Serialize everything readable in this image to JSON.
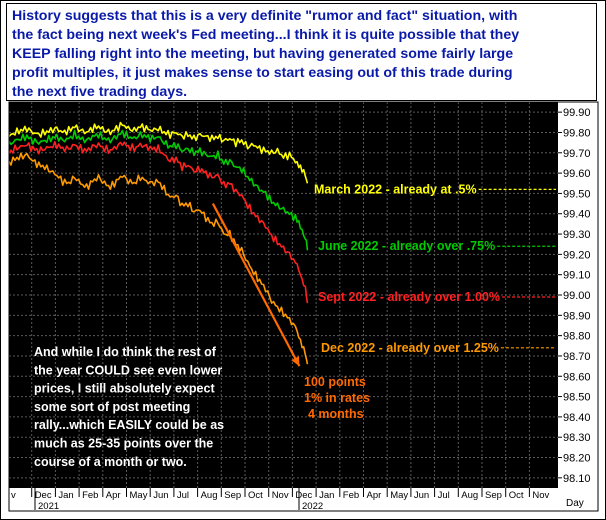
{
  "header": {
    "text": "History suggests that this is a very definite \"rumor and fact\" situation, with\nthe fact being next week's Fed meeting...I think it is quite possible that they\nKEEP falling right into the meeting, but having generated some fairly large\nprofit multiples, it just makes sense to start easing out of this trade during\nthe next five trading days."
  },
  "colors": {
    "background": "#000000",
    "grid": "#5a5a5a",
    "header_text": "#0a1aa8",
    "arrow": "#ff6a00",
    "note_text": "#ffffff"
  },
  "chart_data": {
    "type": "line",
    "x_axis": {
      "month_labels": [
        "v",
        "Dec",
        "Jan",
        "Feb",
        "Apr",
        "May",
        "Jun",
        "Jul",
        "Aug",
        "Sep",
        "Oct",
        "Nov",
        "Dec",
        "Jan",
        "Feb",
        "Apr",
        "May",
        "Jun",
        "Jul",
        "Aug",
        "Sep",
        "Oct",
        "Nov"
      ],
      "year_labels": [
        "2021",
        "2022"
      ],
      "unit_label": "Day"
    },
    "y_axis": {
      "ticks": [
        "99.90",
        "99.80",
        "99.70",
        "99.60",
        "99.50",
        "99.40",
        "99.30",
        "99.20",
        "99.10",
        "99.00",
        "98.90",
        "98.80",
        "98.70",
        "98.60",
        "98.50",
        "98.40",
        "98.30",
        "98.20",
        "98.10"
      ],
      "ylim": [
        98.05,
        99.95
      ]
    },
    "grid": true,
    "series": [
      {
        "name": "March 2022",
        "color": "#ffff00",
        "points": [
          [
            0,
            99.78
          ],
          [
            6,
            99.8
          ],
          [
            12,
            99.81
          ],
          [
            18,
            99.82
          ],
          [
            24,
            99.8
          ],
          [
            30,
            99.79
          ],
          [
            36,
            99.8
          ],
          [
            42,
            99.81
          ],
          [
            48,
            99.82
          ],
          [
            54,
            99.8
          ],
          [
            60,
            99.81
          ],
          [
            66,
            99.83
          ],
          [
            72,
            99.81
          ],
          [
            78,
            99.8
          ],
          [
            84,
            99.82
          ],
          [
            90,
            99.83
          ],
          [
            96,
            99.81
          ],
          [
            102,
            99.8
          ],
          [
            108,
            99.82
          ],
          [
            114,
            99.84
          ],
          [
            120,
            99.82
          ],
          [
            126,
            99.81
          ],
          [
            132,
            99.83
          ],
          [
            138,
            99.82
          ],
          [
            144,
            99.81
          ],
          [
            150,
            99.82
          ],
          [
            156,
            99.8
          ],
          [
            162,
            99.79
          ],
          [
            168,
            99.8
          ],
          [
            174,
            99.78
          ],
          [
            180,
            99.79
          ],
          [
            186,
            99.77
          ],
          [
            192,
            99.79
          ],
          [
            198,
            99.78
          ],
          [
            204,
            99.77
          ],
          [
            210,
            99.78
          ],
          [
            216,
            99.76
          ],
          [
            222,
            99.77
          ],
          [
            228,
            99.75
          ],
          [
            234,
            99.76
          ],
          [
            240,
            99.73
          ],
          [
            246,
            99.74
          ],
          [
            252,
            99.72
          ],
          [
            258,
            99.71
          ],
          [
            264,
            99.7
          ],
          [
            270,
            99.71
          ],
          [
            276,
            99.68
          ],
          [
            282,
            99.69
          ],
          [
            288,
            99.66
          ],
          [
            293,
            99.62
          ],
          [
            298,
            99.59
          ],
          [
            300,
            99.55
          ]
        ]
      },
      {
        "name": "June 2022",
        "color": "#00cc00",
        "points": [
          [
            0,
            99.74
          ],
          [
            6,
            99.76
          ],
          [
            12,
            99.77
          ],
          [
            18,
            99.78
          ],
          [
            24,
            99.76
          ],
          [
            30,
            99.75
          ],
          [
            36,
            99.76
          ],
          [
            42,
            99.77
          ],
          [
            48,
            99.78
          ],
          [
            54,
            99.76
          ],
          [
            60,
            99.77
          ],
          [
            66,
            99.79
          ],
          [
            72,
            99.77
          ],
          [
            78,
            99.76
          ],
          [
            84,
            99.78
          ],
          [
            90,
            99.79
          ],
          [
            96,
            99.77
          ],
          [
            102,
            99.76
          ],
          [
            108,
            99.78
          ],
          [
            114,
            99.8
          ],
          [
            120,
            99.78
          ],
          [
            126,
            99.77
          ],
          [
            132,
            99.79
          ],
          [
            138,
            99.78
          ],
          [
            144,
            99.77
          ],
          [
            150,
            99.78
          ],
          [
            156,
            99.75
          ],
          [
            162,
            99.73
          ],
          [
            168,
            99.74
          ],
          [
            174,
            99.71
          ],
          [
            180,
            99.72
          ],
          [
            186,
            99.7
          ],
          [
            192,
            99.71
          ],
          [
            198,
            99.69
          ],
          [
            204,
            99.68
          ],
          [
            210,
            99.69
          ],
          [
            216,
            99.65
          ],
          [
            222,
            99.66
          ],
          [
            228,
            99.63
          ],
          [
            234,
            99.62
          ],
          [
            240,
            99.58
          ],
          [
            246,
            99.55
          ],
          [
            252,
            99.52
          ],
          [
            258,
            99.5
          ],
          [
            264,
            99.46
          ],
          [
            270,
            99.44
          ],
          [
            276,
            99.42
          ],
          [
            282,
            99.4
          ],
          [
            288,
            99.38
          ],
          [
            293,
            99.33
          ],
          [
            298,
            99.28
          ],
          [
            300,
            99.22
          ]
        ]
      },
      {
        "name": "Sept 2022",
        "color": "#ff2020",
        "points": [
          [
            0,
            99.7
          ],
          [
            6,
            99.72
          ],
          [
            12,
            99.73
          ],
          [
            18,
            99.74
          ],
          [
            24,
            99.72
          ],
          [
            30,
            99.71
          ],
          [
            36,
            99.72
          ],
          [
            42,
            99.73
          ],
          [
            48,
            99.74
          ],
          [
            54,
            99.72
          ],
          [
            60,
            99.72
          ],
          [
            66,
            99.74
          ],
          [
            72,
            99.72
          ],
          [
            78,
            99.71
          ],
          [
            84,
            99.73
          ],
          [
            90,
            99.74
          ],
          [
            96,
            99.72
          ],
          [
            102,
            99.71
          ],
          [
            108,
            99.73
          ],
          [
            114,
            99.75
          ],
          [
            120,
            99.73
          ],
          [
            126,
            99.72
          ],
          [
            132,
            99.74
          ],
          [
            138,
            99.73
          ],
          [
            144,
            99.72
          ],
          [
            150,
            99.72
          ],
          [
            156,
            99.69
          ],
          [
            162,
            99.66
          ],
          [
            168,
            99.67
          ],
          [
            174,
            99.63
          ],
          [
            180,
            99.64
          ],
          [
            186,
            99.61
          ],
          [
            192,
            99.62
          ],
          [
            198,
            99.6
          ],
          [
            204,
            99.58
          ],
          [
            210,
            99.59
          ],
          [
            216,
            99.54
          ],
          [
            222,
            99.55
          ],
          [
            228,
            99.51
          ],
          [
            234,
            99.49
          ],
          [
            240,
            99.44
          ],
          [
            246,
            99.4
          ],
          [
            252,
            99.37
          ],
          [
            258,
            99.34
          ],
          [
            264,
            99.29
          ],
          [
            270,
            99.26
          ],
          [
            276,
            99.23
          ],
          [
            282,
            99.2
          ],
          [
            288,
            99.16
          ],
          [
            293,
            99.1
          ],
          [
            298,
            99.04
          ],
          [
            300,
            98.96
          ]
        ]
      },
      {
        "name": "Dec 2022",
        "color": "#ff9900",
        "points": [
          [
            0,
            99.65
          ],
          [
            6,
            99.67
          ],
          [
            12,
            99.68
          ],
          [
            18,
            99.69
          ],
          [
            24,
            99.66
          ],
          [
            30,
            99.64
          ],
          [
            36,
            99.63
          ],
          [
            42,
            99.61
          ],
          [
            48,
            99.59
          ],
          [
            54,
            99.56
          ],
          [
            60,
            99.55
          ],
          [
            66,
            99.58
          ],
          [
            72,
            99.55
          ],
          [
            78,
            99.53
          ],
          [
            84,
            99.56
          ],
          [
            90,
            99.58
          ],
          [
            96,
            99.55
          ],
          [
            102,
            99.53
          ],
          [
            108,
            99.56
          ],
          [
            114,
            99.59
          ],
          [
            120,
            99.56
          ],
          [
            126,
            99.55
          ],
          [
            132,
            99.58
          ],
          [
            138,
            99.56
          ],
          [
            144,
            99.55
          ],
          [
            150,
            99.56
          ],
          [
            156,
            99.52
          ],
          [
            162,
            99.48
          ],
          [
            168,
            99.49
          ],
          [
            174,
            99.44
          ],
          [
            180,
            99.45
          ],
          [
            186,
            99.41
          ],
          [
            192,
            99.42
          ],
          [
            198,
            99.38
          ],
          [
            204,
            99.35
          ],
          [
            210,
            99.36
          ],
          [
            216,
            99.3
          ],
          [
            222,
            99.3
          ],
          [
            228,
            99.25
          ],
          [
            234,
            99.22
          ],
          [
            240,
            99.16
          ],
          [
            246,
            99.11
          ],
          [
            252,
            99.07
          ],
          [
            258,
            99.03
          ],
          [
            264,
            98.97
          ],
          [
            270,
            98.94
          ],
          [
            276,
            98.91
          ],
          [
            282,
            98.88
          ],
          [
            288,
            98.84
          ],
          [
            293,
            98.78
          ],
          [
            298,
            98.72
          ],
          [
            300,
            98.66
          ]
        ]
      }
    ],
    "series_labels": [
      {
        "text": "March 2022 - already at .5%",
        "color": "#ffff00",
        "y": 99.52
      },
      {
        "text": "June 2022 - already over .75%",
        "color": "#00cc00",
        "y": 99.24
      },
      {
        "text": "Sept 2022 - already over 1.00%",
        "color": "#ff2020",
        "y": 98.99
      },
      {
        "text": "Dec 2022 - already over 1.25%",
        "color": "#ff9900",
        "y": 98.74
      }
    ],
    "arrow": {
      "from": [
        205,
        99.45
      ],
      "to": [
        292,
        98.65
      ]
    },
    "annotations": {
      "drop_note": [
        "100 points",
        "1% in rates",
        "4 months"
      ],
      "comment": [
        "And while I do think the rest of",
        "the year COULD see even lower",
        "prices, I still absolutely expect",
        "some sort of post meeting",
        "rally...which EASILY could be as",
        "much as 25-35 points  over the",
        "course of a month  or two."
      ]
    }
  }
}
